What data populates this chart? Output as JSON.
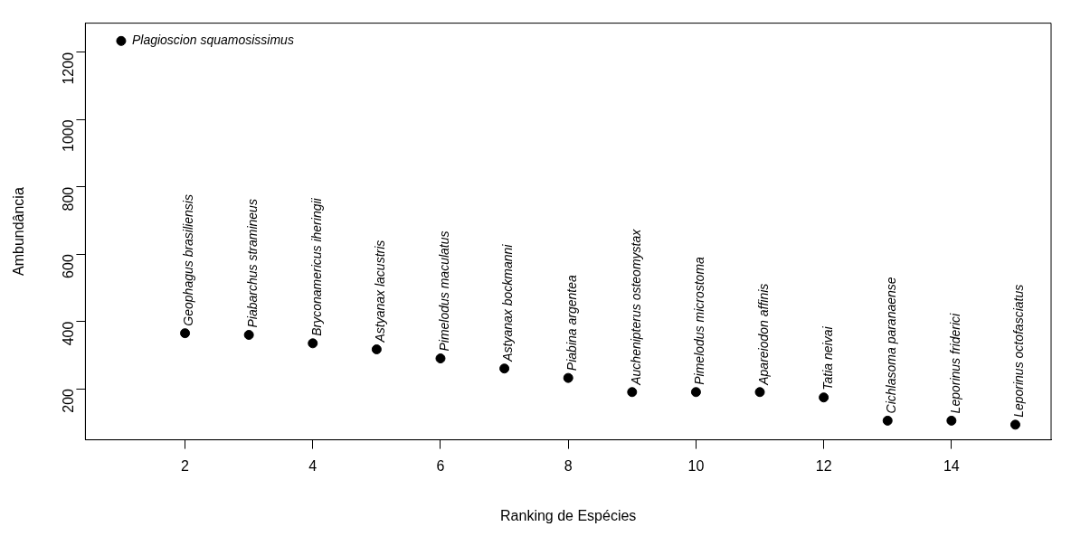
{
  "chart_data": {
    "type": "scatter",
    "xlabel": "Ranking de Espécies",
    "ylabel": "Ambundância",
    "x": [
      1,
      2,
      3,
      4,
      5,
      6,
      7,
      8,
      9,
      10,
      11,
      12,
      13,
      14,
      15
    ],
    "values": [
      1234,
      365,
      360,
      335,
      317,
      290,
      260,
      232,
      190,
      190,
      190,
      174,
      105,
      105,
      93
    ],
    "color": "#000000",
    "marker": "circle",
    "grid": false,
    "legend": false,
    "xlim": [
      0.44,
      15.56
    ],
    "xticks": [
      2,
      4,
      6,
      8,
      10,
      12,
      14
    ],
    "ylim": [
      48,
      1287
    ],
    "yticks": [
      200,
      400,
      600,
      800,
      1000,
      1200
    ],
    "annotations": [
      {
        "text": "Plagioscion squamosissimus",
        "x": 1,
        "y": 1234
      },
      {
        "text": "Geophagus brasiliensis",
        "x": 2,
        "y": 365
      },
      {
        "text": "Piabarchus stramineus",
        "x": 3,
        "y": 360
      },
      {
        "text": "Bryconamericus iheringii",
        "x": 4,
        "y": 335
      },
      {
        "text": "Astyanax lacustris",
        "x": 5,
        "y": 317
      },
      {
        "text": "Pimelodus maculatus",
        "x": 6,
        "y": 290
      },
      {
        "text": "Astyanax bockmanni",
        "x": 7,
        "y": 260
      },
      {
        "text": "Piabina argentea",
        "x": 8,
        "y": 232
      },
      {
        "text": "Auchenipterus osteomystax",
        "x": 9,
        "y": 190
      },
      {
        "text": "Pimelodus microstoma",
        "x": 10,
        "y": 190
      },
      {
        "text": "Apareiodon affinis",
        "x": 11,
        "y": 190
      },
      {
        "text": "Tatia neivai",
        "x": 12,
        "y": 174
      },
      {
        "text": "Cichlasoma paranaense",
        "x": 13,
        "y": 105
      },
      {
        "text": "Leporinus friderici",
        "x": 14,
        "y": 105
      },
      {
        "text": "Leporinus octofasciatus",
        "x": 15,
        "y": 93
      }
    ]
  }
}
